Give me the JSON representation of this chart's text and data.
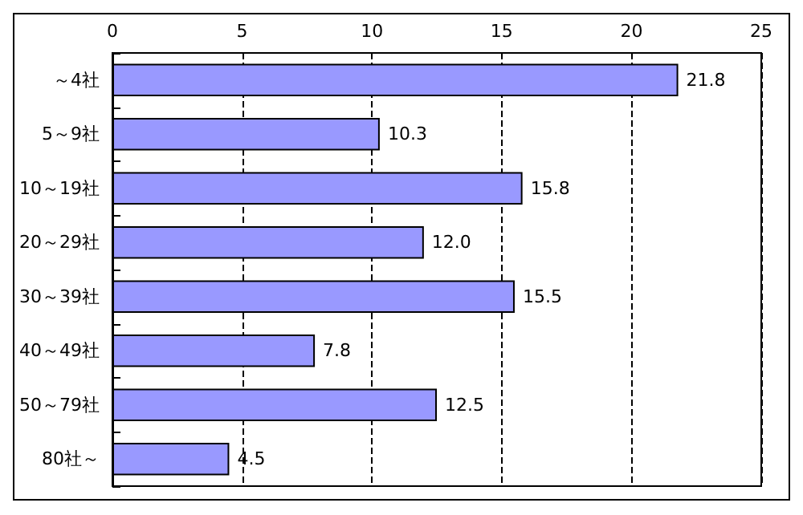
{
  "chart_data": {
    "type": "bar",
    "orientation": "horizontal",
    "categories": [
      "～4社",
      "5～9社",
      "10～19社",
      "20～29社",
      "30～39社",
      "40～49社",
      "50～79社",
      "80社～"
    ],
    "values": [
      21.8,
      10.3,
      15.8,
      12.0,
      15.5,
      7.8,
      12.5,
      4.5
    ],
    "value_labels": [
      "21.8",
      "10.3",
      "15.8",
      "12.0",
      "15.5",
      "7.8",
      "12.5",
      "4.5"
    ],
    "color": "#9999ff",
    "xlim": [
      0,
      25
    ],
    "xticks": [
      0,
      5,
      10,
      15,
      20,
      25
    ],
    "grid": "x"
  }
}
